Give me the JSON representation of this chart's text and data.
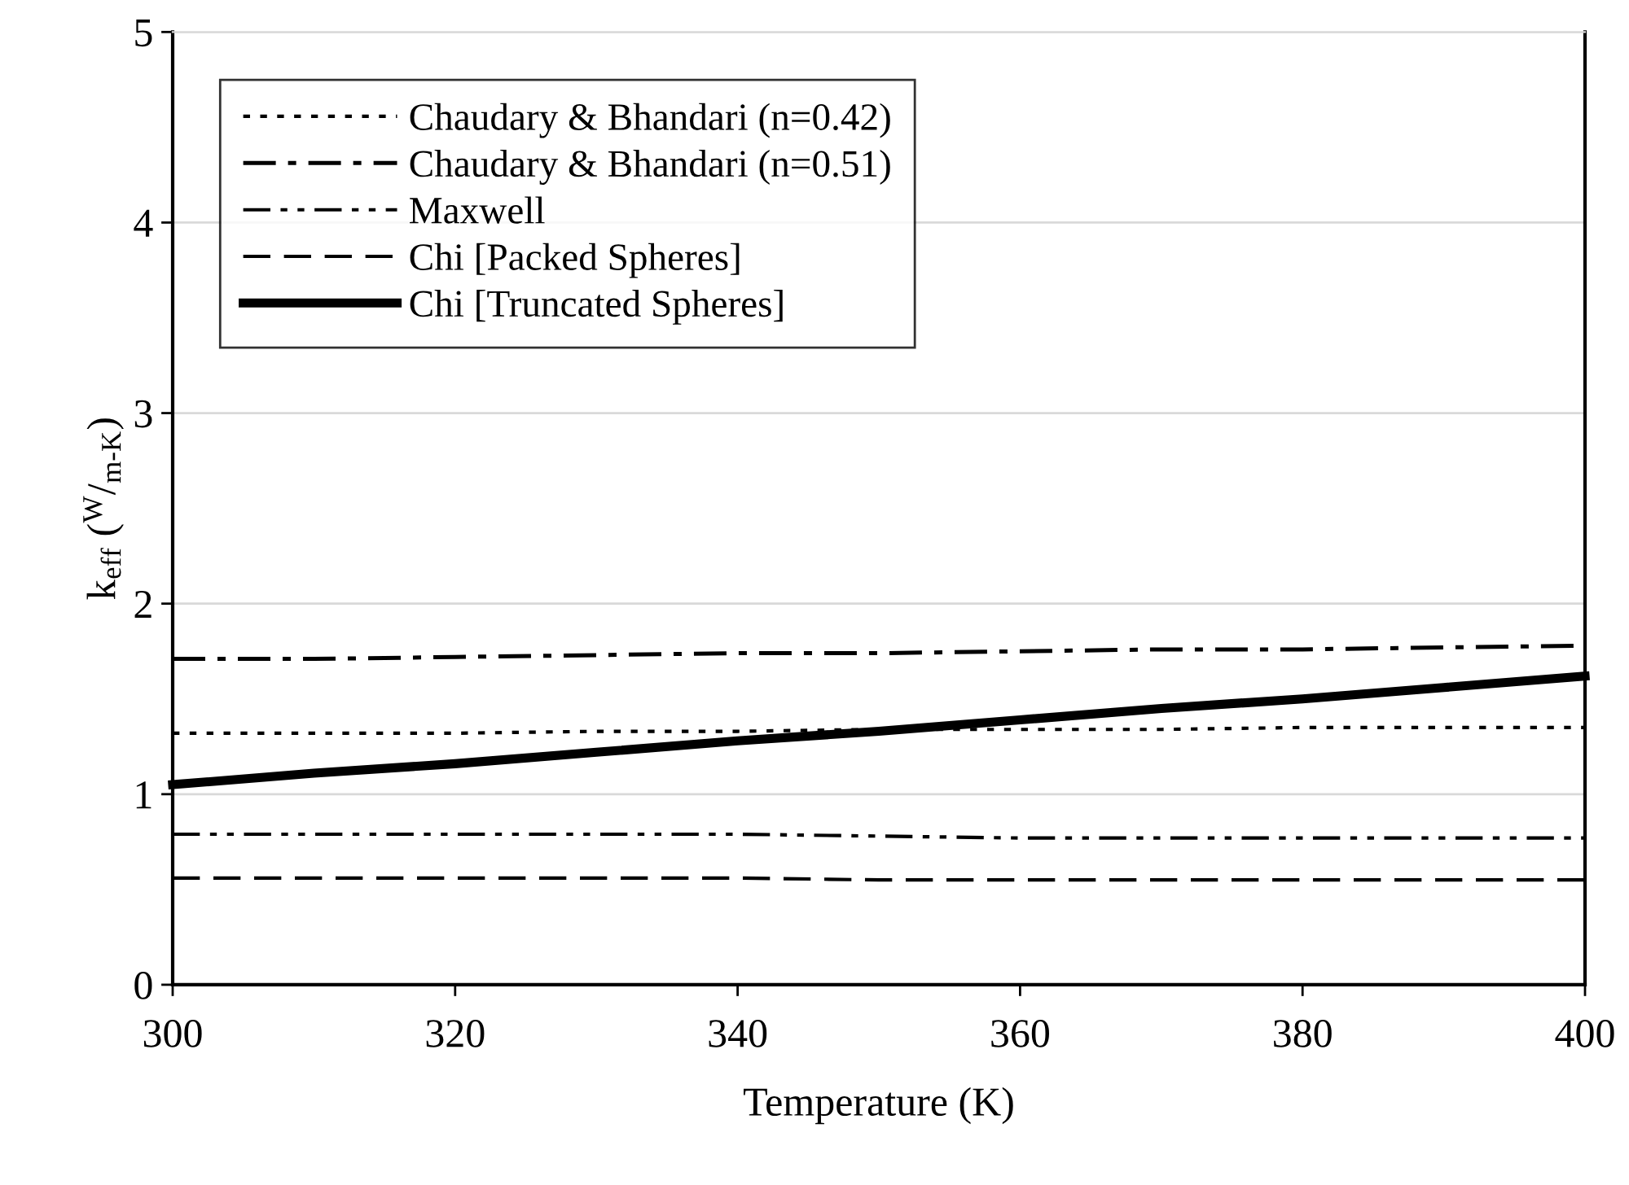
{
  "chart_data": {
    "type": "line",
    "xlabel": "Temperature (K)",
    "ylabel": "k$_{eff}$ ($^{W}$/$_{m-K}$)",
    "x": [
      300,
      310,
      320,
      330,
      340,
      350,
      360,
      370,
      380,
      390,
      400
    ],
    "xlim": [
      300,
      400
    ],
    "xticks": [
      300,
      320,
      340,
      360,
      380,
      400
    ],
    "ylim": [
      0,
      5
    ],
    "yticks": [
      0,
      1,
      2,
      3,
      4,
      5
    ],
    "grid": "y",
    "legend": "top left",
    "marker": "none",
    "series": [
      {
        "name": "Chaudary & Bhandari (n=0.42)",
        "color": "#000000",
        "line_style": "dotted",
        "values": [
          1.32,
          1.32,
          1.32,
          1.33,
          1.33,
          1.34,
          1.34,
          1.34,
          1.35,
          1.35,
          1.35
        ]
      },
      {
        "name": "Chaudary & Bhandari (n=0.51)",
        "color": "#000000",
        "line_style": "dashdot",
        "values": [
          1.71,
          1.71,
          1.72,
          1.73,
          1.74,
          1.74,
          1.75,
          1.76,
          1.76,
          1.77,
          1.78
        ]
      },
      {
        "name": "Maxwell",
        "color": "#000000",
        "line_style": "dashdotdot",
        "values": [
          0.79,
          0.79,
          0.79,
          0.79,
          0.79,
          0.78,
          0.77,
          0.77,
          0.77,
          0.77,
          0.77
        ]
      },
      {
        "name": "Chi [Packed Spheres]",
        "color": "#000000",
        "line_style": "dashed",
        "values": [
          0.56,
          0.56,
          0.56,
          0.56,
          0.56,
          0.55,
          0.55,
          0.55,
          0.55,
          0.55,
          0.55
        ]
      },
      {
        "name": "Chi [Truncated Spheres]",
        "color": "#000000",
        "line_style": "solid",
        "values": [
          1.05,
          1.11,
          1.16,
          1.22,
          1.28,
          1.33,
          1.39,
          1.45,
          1.5,
          1.56,
          1.62
        ]
      }
    ]
  }
}
